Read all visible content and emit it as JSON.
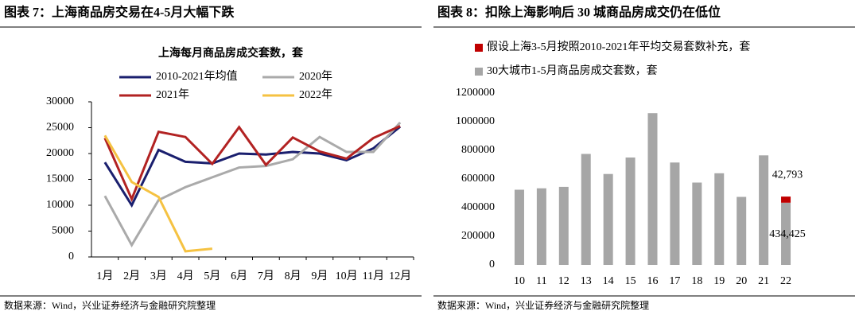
{
  "chart_data": [
    {
      "type": "line",
      "figure_title": "图表 7：上海商品房交易在4-5月大幅下跌",
      "title": "上海每月商品房成交套数，套",
      "source": "数据来源：Wind，兴业证券经济与金融研究院整理",
      "categories": [
        "1月",
        "2月",
        "3月",
        "4月",
        "5月",
        "6月",
        "7月",
        "8月",
        "9月",
        "10月",
        "11月",
        "12月"
      ],
      "series": [
        {
          "name": "2010-2021年均值",
          "color": "#1a1f6e",
          "values": [
            18300,
            10000,
            20700,
            18400,
            18100,
            20000,
            19800,
            20300,
            20000,
            18700,
            21000,
            25200
          ]
        },
        {
          "name": "2020年",
          "color": "#aaaaaa",
          "values": [
            11800,
            2300,
            11000,
            13500,
            15400,
            17300,
            17600,
            18900,
            23200,
            20300,
            20300,
            26000
          ]
        },
        {
          "name": "2021年",
          "color": "#b22222",
          "values": [
            23000,
            11200,
            24200,
            23200,
            18000,
            25100,
            17800,
            23100,
            20400,
            19000,
            23000,
            25300
          ]
        },
        {
          "name": "2022年",
          "color": "#f5c242",
          "values": [
            23500,
            14500,
            11600,
            1100,
            1600,
            null,
            null,
            null,
            null,
            null,
            null,
            null
          ]
        }
      ],
      "ylim": [
        0,
        30000
      ],
      "yticks": [
        0,
        5000,
        10000,
        15000,
        20000,
        25000,
        30000
      ]
    },
    {
      "type": "stacked_bar",
      "figure_title": "图表 8：扣除上海影响后 30 城商品房成交仍在低位",
      "source": "数据来源：Wind，兴业证券经济与金融研究院整理",
      "categories": [
        "10",
        "11",
        "12",
        "13",
        "14",
        "15",
        "16",
        "17",
        "18",
        "19",
        "20",
        "21",
        "22"
      ],
      "series": [
        {
          "name": "30大城市1-5月商品房成交套数，套",
          "color": "#a6a6a6",
          "values": [
            525000,
            535000,
            545000,
            775000,
            635000,
            750000,
            1060000,
            715000,
            575000,
            640000,
            475000,
            765000,
            434425
          ],
          "value_labels": [
            null,
            null,
            null,
            null,
            null,
            null,
            null,
            null,
            null,
            null,
            null,
            null,
            "434,425"
          ]
        },
        {
          "name": "假设上海3-5月按照2010-2021年平均交易套数补充，套",
          "color": "#c00000",
          "values": [
            null,
            null,
            null,
            null,
            null,
            null,
            null,
            null,
            null,
            null,
            null,
            null,
            42793
          ],
          "value_labels": [
            null,
            null,
            null,
            null,
            null,
            null,
            null,
            null,
            null,
            null,
            null,
            null,
            "42,793"
          ]
        }
      ],
      "ylim": [
        0,
        1200000
      ],
      "yticks": [
        0,
        200000,
        400000,
        600000,
        800000,
        1000000,
        1200000
      ]
    }
  ]
}
